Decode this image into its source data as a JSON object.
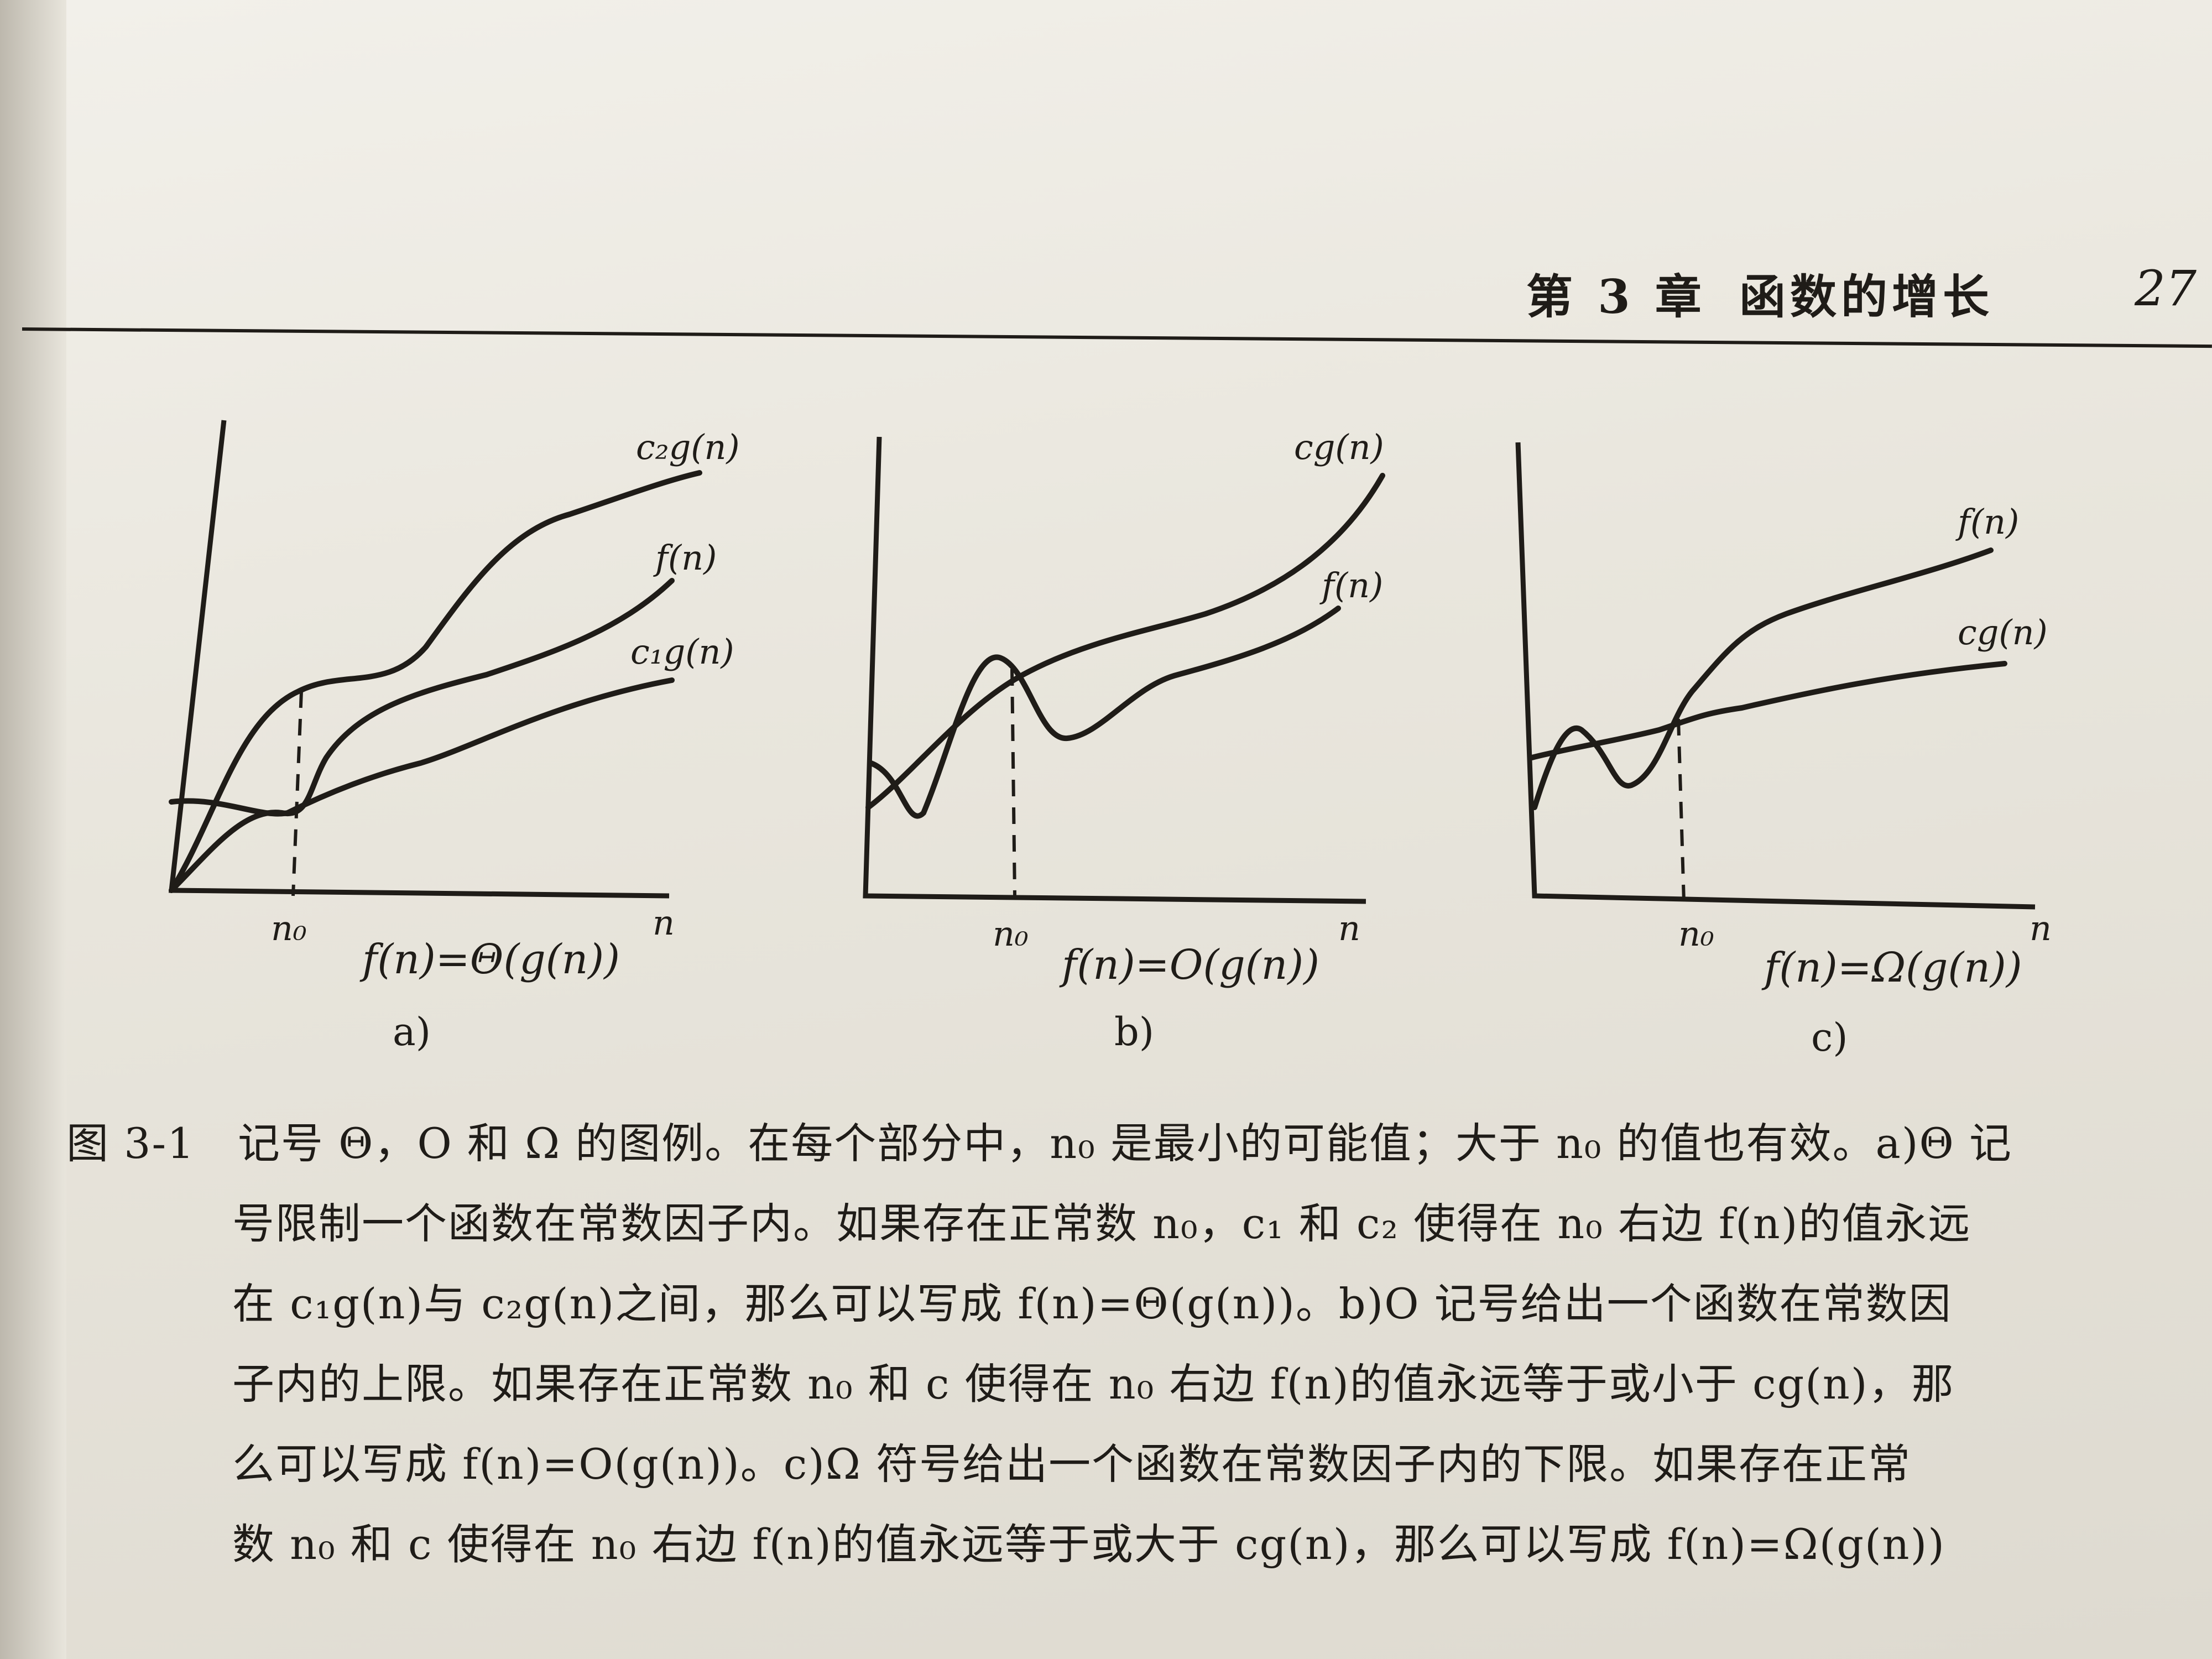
{
  "header": {
    "chapter": "第 3 章",
    "title": "函数的增长",
    "page_number": "27"
  },
  "figure": {
    "panels": [
      {
        "label": "a)",
        "formula": "f(n)=Θ(g(n))",
        "curve_labels": [
          "c₂g(n)",
          "f(n)",
          "c₁g(n)"
        ],
        "n0_label": "n₀",
        "x_label": "n"
      },
      {
        "label": "b)",
        "formula": "f(n)=O(g(n))",
        "curve_labels": [
          "cg(n)",
          "f(n)"
        ],
        "n0_label": "n₀",
        "x_label": "n"
      },
      {
        "label": "c)",
        "formula": "f(n)=Ω(g(n))",
        "curve_labels": [
          "f(n)",
          "cg(n)"
        ],
        "n0_label": "n₀",
        "x_label": "n"
      }
    ]
  },
  "caption": {
    "figure_number": "图 3-1",
    "lines": [
      "记号 Θ，O 和 Ω 的图例。在每个部分中，n₀ 是最小的可能值；大于 n₀ 的值也有效。a)Θ 记",
      "号限制一个函数在常数因子内。如果存在正常数 n₀，c₁ 和 c₂ 使得在 n₀ 右边 f(n)的值永远",
      "在 c₁g(n)与 c₂g(n)之间，那么可以写成 f(n)=Θ(g(n))。b)O 记号给出一个函数在常数因",
      "子内的上限。如果存在正常数 n₀ 和 c 使得在 n₀ 右边 f(n)的值永远等于或小于 cg(n)，那",
      "么可以写成 f(n)=O(g(n))。c)Ω 符号给出一个函数在常数因子内的下限。如果存在正常",
      "数 n₀ 和 c 使得在 n₀ 右边 f(n)的值永远等于或大于 cg(n)，那么可以写成 f(n)=Ω(g(n))"
    ]
  }
}
